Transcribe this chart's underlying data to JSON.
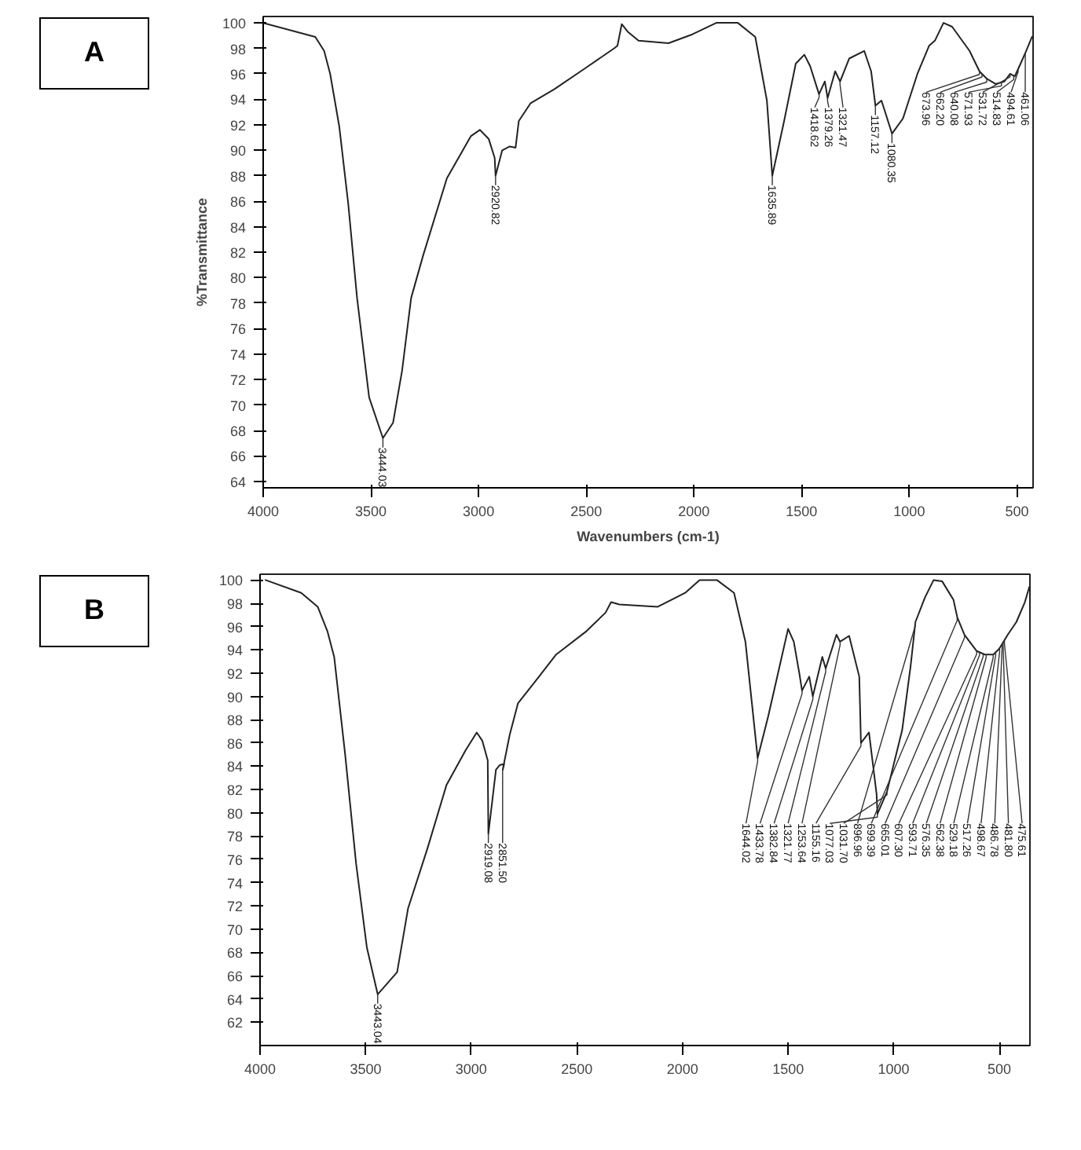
{
  "chart_data": [
    {
      "type": "line",
      "title": "A",
      "xlabel": "Wavenumbers (cm-1)",
      "ylabel": "%Transmittance",
      "xlim": [
        4000,
        425
      ],
      "ylim": [
        63.5,
        100.5
      ],
      "xticks": [
        4000,
        3500,
        3000,
        2500,
        2000,
        1500,
        1000,
        500
      ],
      "yticks": [
        64,
        66,
        68,
        70,
        72,
        74,
        76,
        78,
        80,
        82,
        84,
        86,
        88,
        90,
        92,
        94,
        96,
        98,
        100
      ],
      "x": [
        4000,
        3758,
        3717,
        3689,
        3647,
        3605,
        3564,
        3508,
        3444,
        3397,
        3355,
        3313,
        3258,
        3147,
        3036,
        2994,
        2953,
        2925,
        2921,
        2890,
        2855,
        2828,
        2813,
        2758,
        2647,
        2508,
        2370,
        2355,
        2335,
        2307,
        2257,
        2118,
        2007,
        1896,
        1877,
        1796,
        1715,
        1661,
        1636,
        1581,
        1527,
        1487,
        1460,
        1419,
        1392,
        1379,
        1344,
        1321,
        1279,
        1209,
        1177,
        1157,
        1129,
        1110,
        1080,
        1029,
        962,
        908,
        881,
        841,
        801,
        720,
        674,
        639,
        599,
        558,
        532,
        510,
        483,
        457,
        430
      ],
      "series": [
        {
          "color": "#222222",
          "values": [
            100,
            98.9,
            97.8,
            96,
            91.9,
            85.8,
            78.4,
            70.6,
            67.4,
            68.6,
            72.7,
            78.4,
            81.7,
            87.8,
            91.1,
            91.6,
            90.9,
            89.4,
            88,
            90,
            90.3,
            90.2,
            92.3,
            93.7,
            94.8,
            96.4,
            98,
            98.2,
            99.9,
            99.3,
            98.6,
            98.4,
            99.1,
            100,
            100,
            100,
            98.9,
            93.9,
            88,
            92.3,
            96.8,
            97.5,
            96.6,
            94.4,
            95.4,
            94.1,
            96.2,
            95.4,
            97.2,
            97.8,
            96.2,
            93.5,
            93.9,
            92.9,
            91.3,
            92.5,
            96,
            98.2,
            98.6,
            100,
            99.7,
            97.8,
            96.2,
            95.6,
            95.2,
            95.4,
            96,
            95.8,
            96.8,
            97.8,
            98.9
          ]
        }
      ],
      "annotations": [
        {
          "text": "3444.03",
          "x": 3444.03,
          "y": 67.4
        },
        {
          "text": "2920.82",
          "x": 2920.82,
          "y": 88
        },
        {
          "text": "1635.89",
          "x": 1635.89,
          "y": 88
        },
        {
          "text": "1418.62",
          "x": 1418.62,
          "y": 94.4
        },
        {
          "text": "1379.26",
          "x": 1379.26,
          "y": 94.1
        },
        {
          "text": "1321.47",
          "x": 1321.47,
          "y": 95.4
        },
        {
          "text": "1157.12",
          "x": 1157.12,
          "y": 93.5
        },
        {
          "text": "1080.35",
          "x": 1080.35,
          "y": 91.3
        },
        {
          "text": "673.96",
          "x": 673.96,
          "y": 96.2
        },
        {
          "text": "662.20",
          "x": 662.2,
          "y": 96
        },
        {
          "text": "640.08",
          "x": 640.08,
          "y": 95.6
        },
        {
          "text": "571.93",
          "x": 571.93,
          "y": 95.3
        },
        {
          "text": "531.72",
          "x": 531.72,
          "y": 96
        },
        {
          "text": "514.83",
          "x": 514.83,
          "y": 95.8
        },
        {
          "text": "494.61",
          "x": 494.61,
          "y": 96.4
        },
        {
          "text": "461.06",
          "x": 461.06,
          "y": 97.6
        }
      ]
    },
    {
      "type": "line",
      "title": "B",
      "xlim": [
        4000,
        355
      ],
      "ylim": [
        60,
        100.5
      ],
      "xticks": [
        4000,
        3500,
        3000,
        2500,
        2000,
        1500,
        1000,
        500
      ],
      "yticks": [
        62,
        64,
        66,
        68,
        70,
        72,
        74,
        76,
        78,
        80,
        82,
        84,
        86,
        88,
        90,
        92,
        94,
        96,
        98,
        100
      ],
      "x": [
        3974,
        3805,
        3727,
        3681,
        3649,
        3623,
        3597,
        3545,
        3494,
        3443,
        3351,
        3299,
        3208,
        3117,
        3026,
        2974,
        2948,
        2922,
        2919,
        2883,
        2865,
        2844,
        2851,
        2818,
        2779,
        2688,
        2598,
        2455,
        2364,
        2338,
        2299,
        2117,
        1987,
        1919,
        1837,
        1756,
        1702,
        1644,
        1594,
        1540,
        1500,
        1473,
        1446,
        1434,
        1400,
        1383,
        1338,
        1322,
        1271,
        1254,
        1211,
        1163,
        1155,
        1117,
        1081,
        1077,
        1032,
        960,
        920,
        897,
        852,
        811,
        771,
        717,
        699,
        665,
        607,
        569,
        528,
        500,
        460,
        419,
        379,
        358
      ],
      "series": [
        {
          "color": "#222222",
          "values": [
            100,
            98.9,
            97.7,
            95.6,
            93.4,
            89.2,
            85,
            75.6,
            68.4,
            64.4,
            66.3,
            71.8,
            76.9,
            82.4,
            85.4,
            86.9,
            86.2,
            84.5,
            78.2,
            83.7,
            84.1,
            84.2,
            83.7,
            86.7,
            89.4,
            91.5,
            93.6,
            95.6,
            97.2,
            98.1,
            97.9,
            97.7,
            98.9,
            100,
            100,
            98.9,
            94.7,
            84.7,
            88.3,
            92.6,
            95.8,
            94.7,
            91.9,
            90.5,
            91.7,
            90,
            93.4,
            92.4,
            95.3,
            94.7,
            95.2,
            91.7,
            86,
            86.9,
            81.6,
            79.9,
            81.8,
            87.1,
            92.6,
            96.4,
            98.5,
            100,
            99.9,
            98.3,
            96.8,
            95.3,
            93.9,
            93.6,
            93.6,
            94.1,
            95.3,
            96.4,
            98.1,
            99.4
          ]
        }
      ],
      "annotations": [
        {
          "text": "3443.04",
          "x": 3443.04,
          "y": 64.4
        },
        {
          "text": "2919.08",
          "x": 2919.08,
          "y": 78.2
        },
        {
          "text": "2851.50",
          "x": 2851.5,
          "y": 83.7
        },
        {
          "text": "1644.02",
          "x": 1644.02,
          "y": 84.7
        },
        {
          "text": "1433.78",
          "x": 1433.78,
          "y": 90.5
        },
        {
          "text": "1382.84",
          "x": 1382.84,
          "y": 90
        },
        {
          "text": "1321.77",
          "x": 1321.77,
          "y": 92.4
        },
        {
          "text": "1253.64",
          "x": 1253.64,
          "y": 94.7
        },
        {
          "text": "1155.16",
          "x": 1155.16,
          "y": 86
        },
        {
          "text": "1077.03",
          "x": 1077.03,
          "y": 79.9
        },
        {
          "text": "1031.70",
          "x": 1031.7,
          "y": 81.8
        },
        {
          "text": "896.96",
          "x": 896.96,
          "y": 96.4
        },
        {
          "text": "699.39",
          "x": 699.39,
          "y": 96.8
        },
        {
          "text": "665.01",
          "x": 665.01,
          "y": 95.3
        },
        {
          "text": "607.30",
          "x": 607.3,
          "y": 93.9
        },
        {
          "text": "593.71",
          "x": 593.71,
          "y": 93.8
        },
        {
          "text": "576.35",
          "x": 576.35,
          "y": 93.7
        },
        {
          "text": "562.38",
          "x": 562.38,
          "y": 93.6
        },
        {
          "text": "529.18",
          "x": 529.18,
          "y": 93.6
        },
        {
          "text": "517.26",
          "x": 517.26,
          "y": 93.8
        },
        {
          "text": "498.67",
          "x": 498.67,
          "y": 94.1
        },
        {
          "text": "486.78",
          "x": 486.78,
          "y": 94.5
        },
        {
          "text": "475.61",
          "x": 475.61,
          "y": 94.8
        },
        {
          "text": "481.80",
          "x": 481.8,
          "y": 94.6
        }
      ]
    }
  ]
}
